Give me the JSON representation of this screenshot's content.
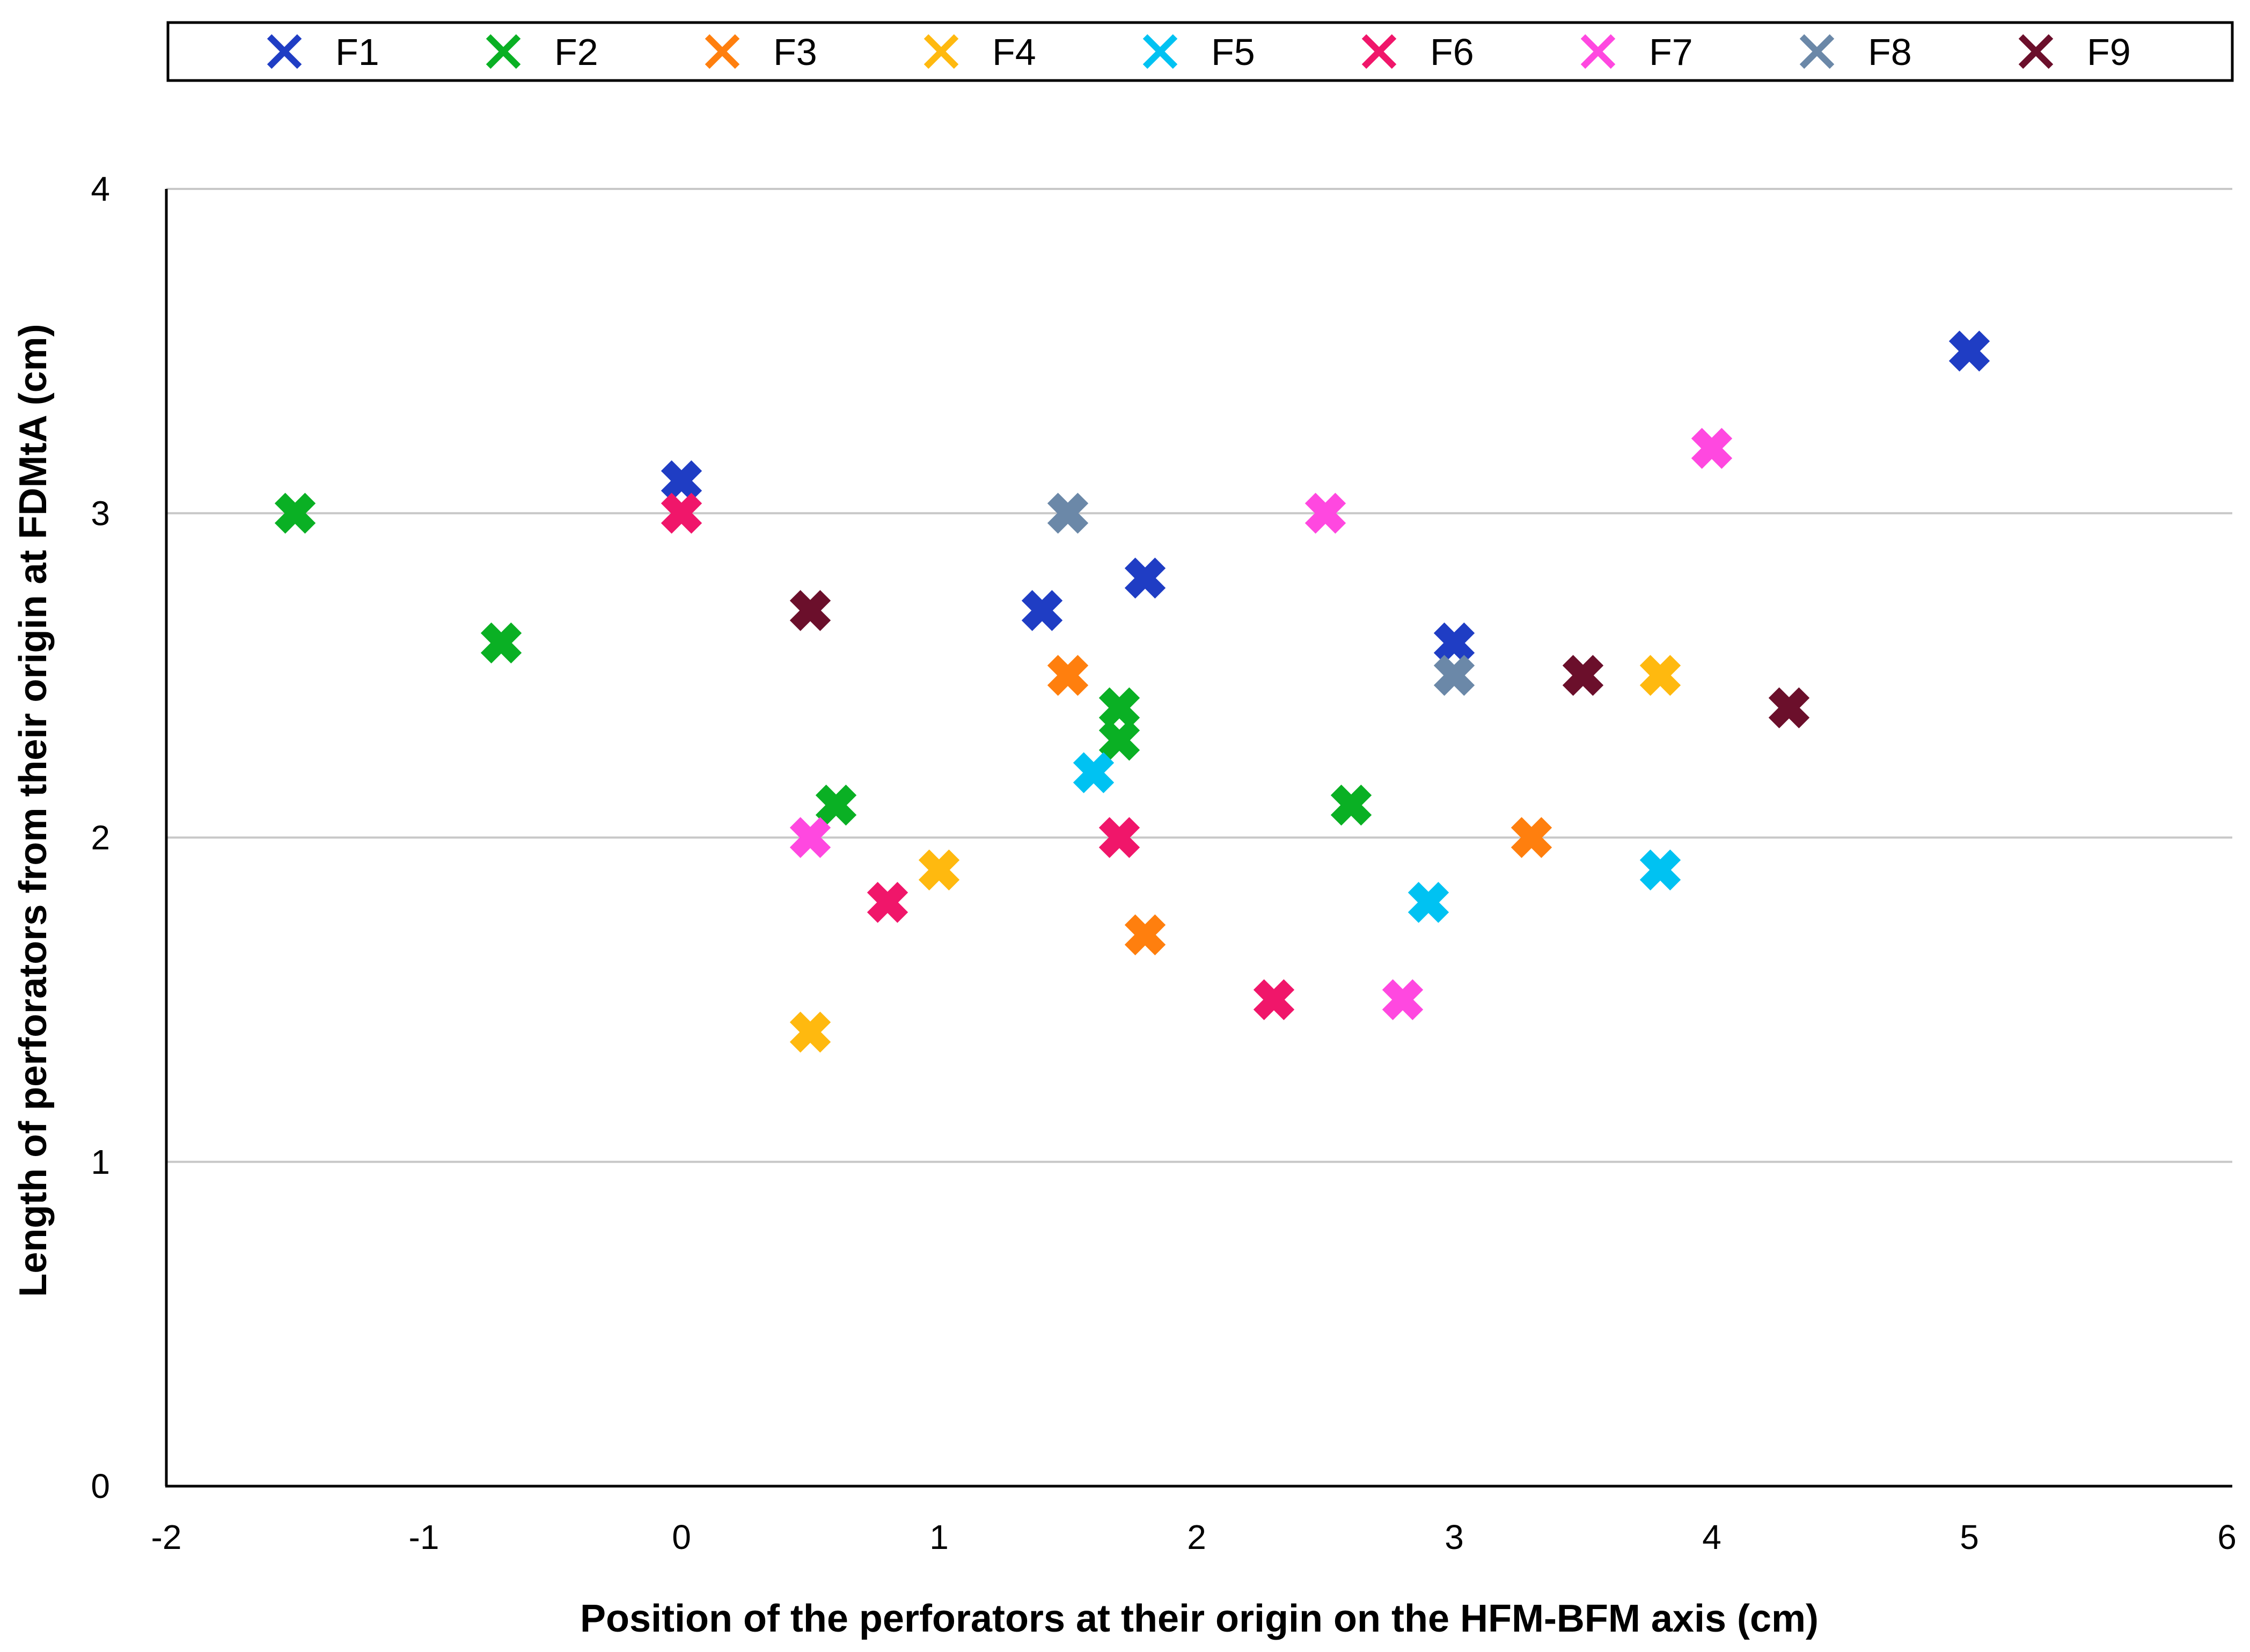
{
  "chart_data": {
    "type": "scatter",
    "title": "",
    "xlabel": "Position of the perforators at their origin on the HFM-BFM axis (cm)",
    "ylabel": "Length of perforators from their origin at FDMtA (cm)",
    "xlim": [
      -2,
      6
    ],
    "ylim": [
      0,
      4
    ],
    "x_ticks": [
      -2,
      -1,
      0,
      1,
      2,
      3,
      4,
      5,
      6
    ],
    "y_ticks": [
      0,
      1,
      2,
      3,
      4
    ],
    "grid": "horizontal",
    "legend_position": "top",
    "marker": "cross",
    "series": [
      {
        "name": "F1",
        "color": "#1f3dc4",
        "points": [
          [
            0,
            3.1
          ],
          [
            1.4,
            2.7
          ],
          [
            1.8,
            2.8
          ],
          [
            3,
            2.6
          ],
          [
            5,
            3.5
          ]
        ]
      },
      {
        "name": "F2",
        "color": "#0ab024",
        "points": [
          [
            -1.5,
            3.0
          ],
          [
            -0.7,
            2.6
          ],
          [
            0.6,
            2.1
          ],
          [
            1.7,
            2.4
          ],
          [
            1.7,
            2.3
          ],
          [
            2.6,
            2.1
          ]
        ]
      },
      {
        "name": "F3",
        "color": "#ff7f0e",
        "points": [
          [
            1.5,
            2.5
          ],
          [
            1.8,
            1.7
          ],
          [
            3.3,
            2.0
          ]
        ]
      },
      {
        "name": "F4",
        "color": "#ffb90f",
        "points": [
          [
            0.5,
            1.4
          ],
          [
            1.0,
            1.9
          ],
          [
            3.8,
            2.5
          ]
        ]
      },
      {
        "name": "F5",
        "color": "#00c2f2",
        "points": [
          [
            1.6,
            2.2
          ],
          [
            2.9,
            1.8
          ],
          [
            3.8,
            1.9
          ]
        ]
      },
      {
        "name": "F6",
        "color": "#f0166a",
        "points": [
          [
            0,
            3.0
          ],
          [
            0.8,
            1.8
          ],
          [
            1.7,
            2.0
          ],
          [
            2.3,
            1.5
          ]
        ]
      },
      {
        "name": "F7",
        "color": "#ff48e0",
        "points": [
          [
            0.5,
            2.0
          ],
          [
            2.5,
            3.0
          ],
          [
            2.8,
            1.5
          ],
          [
            4.0,
            3.2
          ]
        ]
      },
      {
        "name": "F8",
        "color": "#6b88a8",
        "points": [
          [
            1.5,
            3.0
          ],
          [
            3.0,
            2.5
          ]
        ]
      },
      {
        "name": "F9",
        "color": "#6b0f2b",
        "points": [
          [
            0.5,
            2.7
          ],
          [
            3.5,
            2.5
          ],
          [
            4.3,
            2.4
          ]
        ]
      }
    ]
  }
}
